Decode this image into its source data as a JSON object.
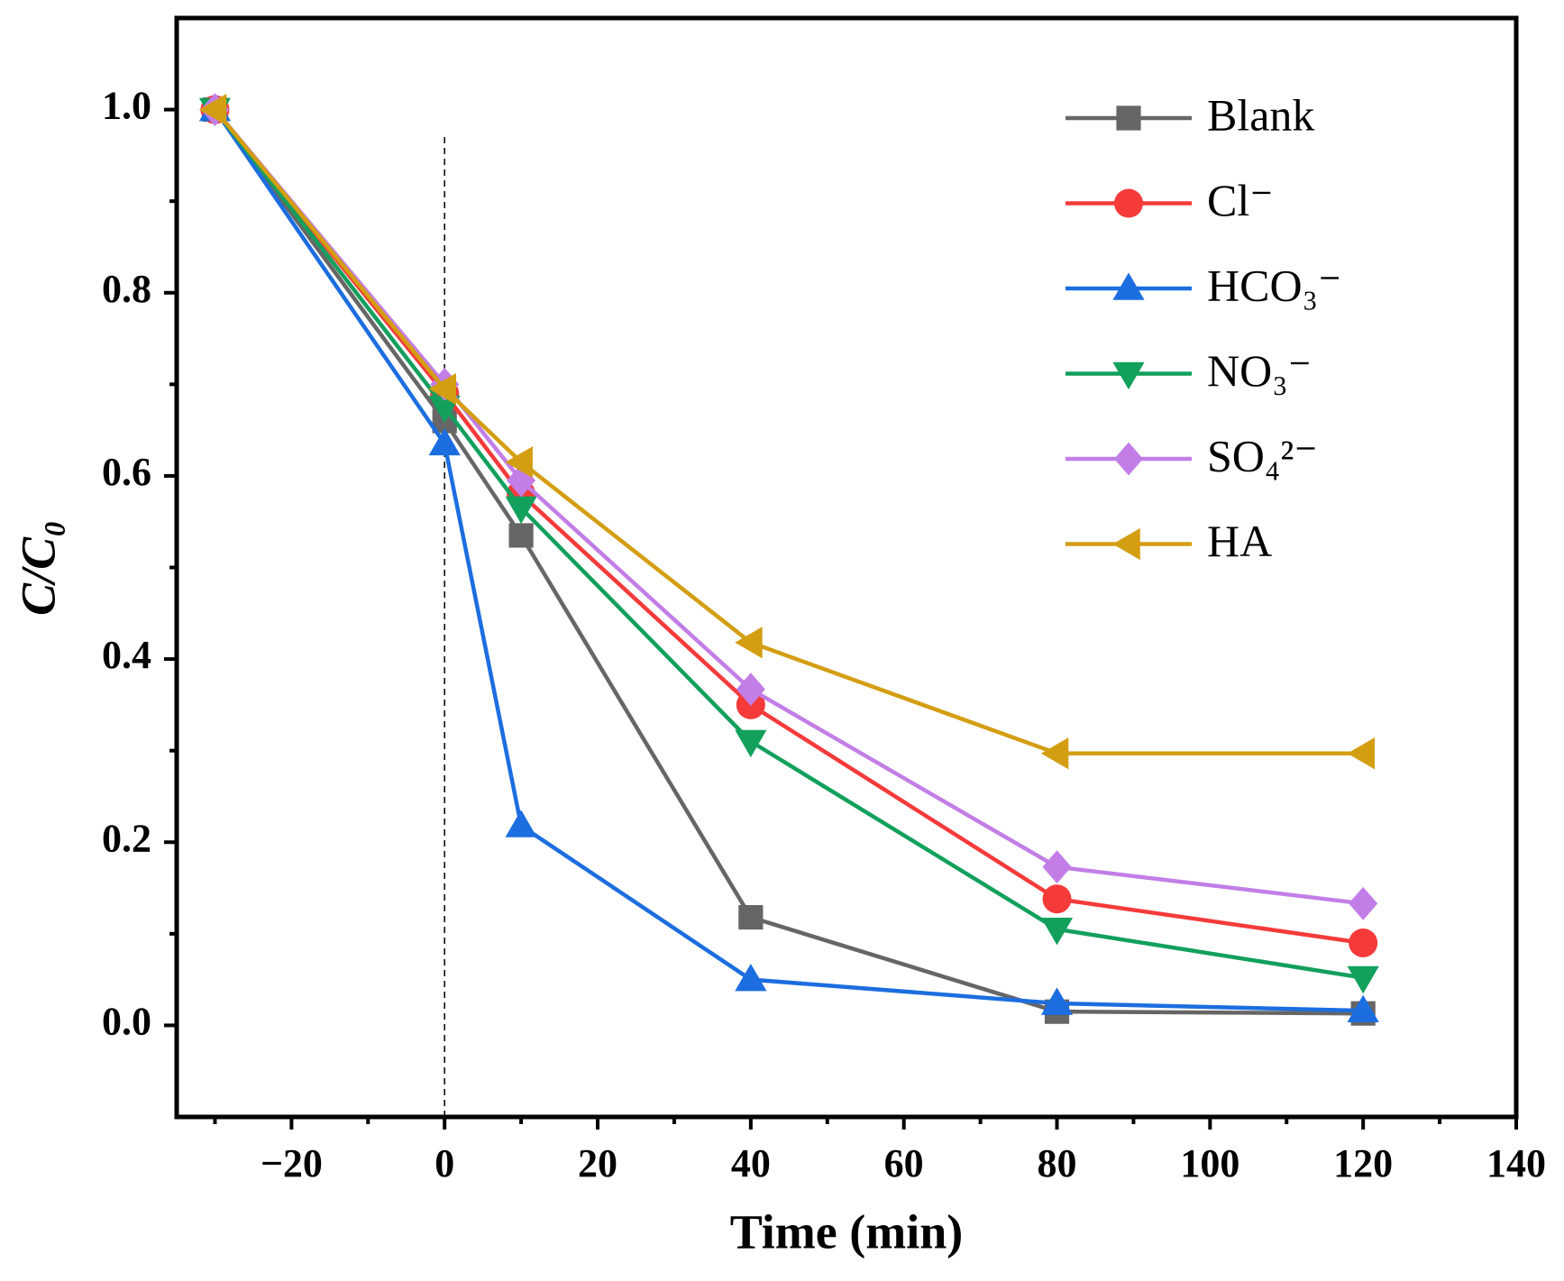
{
  "chart_data": {
    "type": "line",
    "x_label": "Time (min)",
    "y_label": "C/C₀",
    "x": [
      -30,
      0,
      10,
      40,
      80,
      120
    ],
    "series": [
      {
        "name": "Blank",
        "color": "#666666",
        "marker": "square",
        "values": [
          1.0,
          0.66,
          0.535,
          0.118,
          0.015,
          0.013
        ]
      },
      {
        "name": "Cl⁻",
        "color": "#f53a3a",
        "marker": "circle",
        "values": [
          1.0,
          0.69,
          0.58,
          0.35,
          0.138,
          0.09
        ]
      },
      {
        "name": "HCO₃⁻",
        "color": "#1c6ee0",
        "marker": "triangle-up",
        "values": [
          1.0,
          0.635,
          0.218,
          0.05,
          0.024,
          0.016
        ]
      },
      {
        "name": "NO₃⁻",
        "color": "#12a05c",
        "marker": "triangle-down",
        "values": [
          1.0,
          0.675,
          0.565,
          0.31,
          0.105,
          0.052
        ]
      },
      {
        "name": "SO₄²⁻",
        "color": "#c27ee6",
        "marker": "diamond",
        "values": [
          1.0,
          0.7,
          0.595,
          0.367,
          0.173,
          0.133
        ]
      },
      {
        "name": "HA",
        "color": "#d49e12",
        "marker": "triangle-left",
        "values": [
          1.0,
          0.695,
          0.615,
          0.418,
          0.297,
          0.297
        ]
      }
    ],
    "xlim": [
      -35,
      140
    ],
    "ylim": [
      -0.1,
      1.1
    ],
    "xticks": [
      {
        "value": -20,
        "label": "−20"
      },
      0,
      20,
      40,
      60,
      80,
      100,
      120,
      140
    ],
    "yticks": [
      {
        "value": 0,
        "label": "0.0"
      },
      0.2,
      0.4,
      0.6,
      0.8,
      {
        "value": 1,
        "label": "1.0"
      }
    ],
    "xminorticks": [
      -30,
      -10,
      10,
      30,
      50,
      70,
      90,
      110,
      130
    ],
    "yminorticks": [
      0.1,
      0.3,
      0.5,
      0.7,
      0.9
    ],
    "vline": {
      "x": 0,
      "ymax": 0.97
    },
    "legend": "upper right",
    "grid": false
  }
}
